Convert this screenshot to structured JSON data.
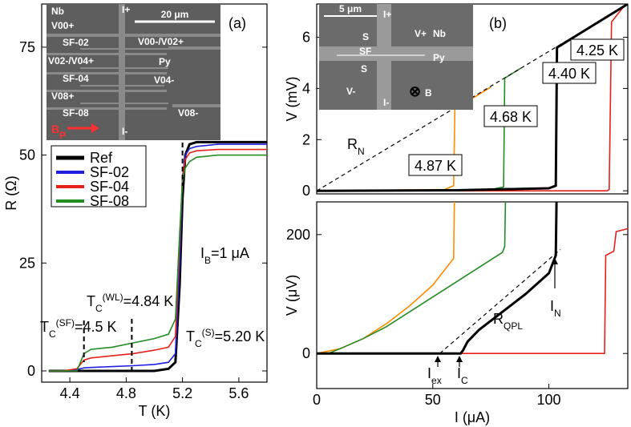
{
  "chart_data": [
    {
      "type": "line",
      "panel_label": "(a)",
      "xlabel": "T (K)",
      "ylabel": "R (Ω)",
      "xlim": [
        4.2,
        5.8
      ],
      "ylim": [
        -2.6,
        85
      ],
      "xticks": [
        4.4,
        4.8,
        5.2,
        5.6
      ],
      "yticks": [
        0,
        25,
        50,
        75
      ],
      "legend": "left",
      "series": [
        {
          "name": "Ref",
          "color": "#000000",
          "x": [
            4.25,
            4.35,
            4.45,
            4.5,
            4.55,
            4.7,
            4.85,
            5.0,
            5.1,
            5.15,
            5.18,
            5.2,
            5.22,
            5.25,
            5.3,
            5.45,
            5.6,
            5.8
          ],
          "values": [
            0,
            0,
            0,
            0,
            0,
            0,
            0,
            0,
            0.5,
            2,
            20,
            40,
            50,
            52.5,
            53,
            53,
            53,
            53
          ]
        },
        {
          "name": "SF-02",
          "color": "#1f1fe0",
          "x": [
            4.25,
            4.35,
            4.45,
            4.5,
            4.55,
            4.7,
            4.85,
            5.0,
            5.1,
            5.15,
            5.18,
            5.2,
            5.22,
            5.25,
            5.3,
            5.45,
            5.6,
            5.8
          ],
          "values": [
            0,
            0,
            0.3,
            0.7,
            0.8,
            1,
            1.2,
            1.5,
            2,
            4,
            25,
            45,
            50,
            51.5,
            52,
            52.5,
            52.5,
            52.5
          ]
        },
        {
          "name": "SF-04",
          "color": "#e8201a",
          "x": [
            4.25,
            4.35,
            4.45,
            4.5,
            4.55,
            4.7,
            4.85,
            5.0,
            5.1,
            5.15,
            5.18,
            5.2,
            5.22,
            5.25,
            5.3,
            5.45,
            5.6,
            5.8
          ],
          "values": [
            0,
            0,
            0.5,
            2.5,
            3,
            3.5,
            4,
            4.8,
            5.5,
            8,
            30,
            45,
            49,
            50.5,
            51,
            51.3,
            51.3,
            51.3
          ]
        },
        {
          "name": "SF-08",
          "color": "#228b22",
          "x": [
            4.25,
            4.35,
            4.45,
            4.5,
            4.55,
            4.7,
            4.85,
            5.0,
            5.1,
            5.15,
            5.18,
            5.2,
            5.22,
            5.25,
            5.3,
            5.45,
            5.6,
            5.8
          ],
          "values": [
            0,
            0,
            0,
            4,
            5,
            5.5,
            6.5,
            7.5,
            8.5,
            12,
            32,
            44,
            47,
            48.5,
            49.5,
            50,
            50,
            50
          ]
        }
      ],
      "markers": [
        4.5,
        4.84,
        5.2
      ],
      "annotations": {
        "ib": [
          "I",
          "B",
          "=1 μA"
        ],
        "tc_wl": [
          "T",
          "C",
          "(WL)",
          "=4.84 K"
        ],
        "tc_sf": [
          "T",
          "C",
          "(SF)",
          "=4.5 K"
        ],
        "tc_s": [
          "T",
          "C",
          "(S)",
          "=5.20 K"
        ]
      },
      "inset": {
        "labels": [
          "Nb",
          "V00+",
          "I+",
          "SF-02",
          "V00-/V02+",
          "V02-/V04+",
          "Py",
          "SF-04",
          "V04-",
          "V08+",
          "SF-08",
          "V08-",
          "I-"
        ],
        "scale": "20 μm",
        "field": [
          "B",
          "P"
        ]
      }
    },
    {
      "type": "line",
      "panel_label": "(b)",
      "ylabel": "V (mV)",
      "xlim": [
        0,
        134
      ],
      "ylim": [
        -0.12,
        7.3
      ],
      "yticks": [
        0,
        2,
        4,
        6
      ],
      "series": [
        {
          "color": "#ff8c00",
          "x": [
            0,
            55,
            59,
            59.5,
            75
          ],
          "values": [
            0,
            0.05,
            0.2,
            3.2,
            4.05
          ]
        },
        {
          "color": "#228b22",
          "x": [
            0,
            75,
            80.5,
            81,
            88
          ],
          "values": [
            0,
            0.05,
            0.15,
            4.4,
            4.8
          ]
        },
        {
          "color": "#e8201a",
          "x": [
            0,
            125,
            126,
            127,
            134
          ],
          "values": [
            0,
            0,
            0.05,
            6.6,
            7.4
          ]
        },
        {
          "color": "#000000",
          "x": [
            0,
            60,
            100,
            103,
            103.5,
            134
          ],
          "values": [
            0,
            0.02,
            0.1,
            0.2,
            5.6,
            7.3
          ]
        },
        {
          "color": "#000000",
          "dashed": true,
          "x": [
            0,
            134
          ],
          "values": [
            0,
            7.3
          ]
        }
      ],
      "annotations": {
        "rn": [
          "R",
          "N"
        ],
        "t487": [
          "4.87 K"
        ],
        "t468": [
          "4.68 K"
        ],
        "t440": [
          "4.40 K"
        ],
        "t425": [
          "4.25 K"
        ]
      },
      "inset": {
        "labels": [
          "I+",
          "V+",
          "Nb",
          "S",
          "SF",
          "Py",
          "S",
          "V-",
          "I-",
          "⊗",
          "B"
        ],
        "scale": "5 μm"
      }
    },
    {
      "type": "line",
      "xlabel": "I (μA)",
      "ylabel": "V (μV)",
      "xlim": [
        0,
        134
      ],
      "ylim": [
        -59,
        255
      ],
      "xticks": [
        0,
        50,
        100
      ],
      "yticks": [
        0,
        200
      ],
      "series": [
        {
          "color": "#ff8c00",
          "x": [
            0,
            10,
            20,
            30,
            40,
            50,
            59,
            59.3
          ],
          "values": [
            0,
            8,
            25,
            50,
            80,
            115,
            160,
            255
          ]
        },
        {
          "color": "#228b22",
          "x": [
            0,
            5,
            10,
            20,
            30,
            40,
            50,
            60,
            70,
            80,
            81,
            81.3
          ],
          "values": [
            0,
            0,
            8,
            25,
            45,
            70,
            95,
            120,
            145,
            170,
            180,
            255
          ]
        },
        {
          "color": "#e8201a",
          "x": [
            0,
            124,
            124.5,
            128,
            129,
            134
          ],
          "values": [
            0,
            0,
            165,
            172,
            205,
            210
          ]
        },
        {
          "color": "#000000",
          "x": [
            0,
            62,
            63,
            65,
            70,
            80,
            90,
            100,
            103,
            103.3
          ],
          "values": [
            0,
            0,
            5,
            20,
            40,
            70,
            100,
            135,
            165,
            255
          ]
        },
        {
          "color": "#000000",
          "dashed": true,
          "x": [
            53,
            105
          ],
          "values": [
            0,
            175
          ]
        }
      ],
      "annotations": {
        "rqpl": [
          "R",
          "QPL"
        ],
        "in": [
          "I",
          "N"
        ],
        "iex": [
          "I",
          "ex"
        ],
        "ic": [
          "I",
          "C"
        ]
      }
    }
  ]
}
